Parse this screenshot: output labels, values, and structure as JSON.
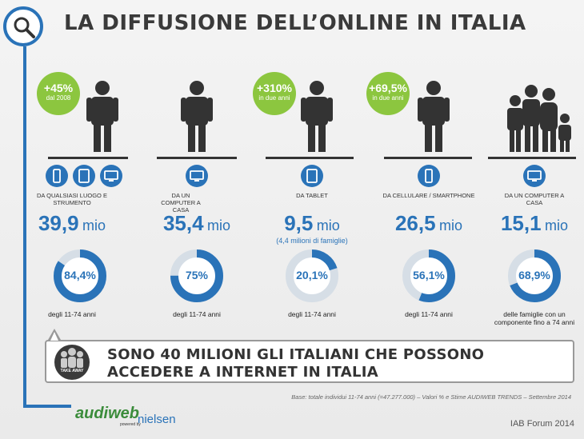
{
  "title": "LA DIFFUSIONE DELL’ONLINE IN ITALIA",
  "columns": [
    {
      "badge_value": "+45%",
      "badge_label": "dal 2008",
      "caption": "DA QUALSIASI LUOGO E STRUMENTO",
      "value": "39,9",
      "unit": "mio",
      "sub": "",
      "pct_label": "84,4%",
      "pct": 84.4,
      "note": "degli 11-74 anni",
      "devices": [
        "smartphone-icon",
        "tablet-icon",
        "monitor-icon"
      ]
    },
    {
      "badge_value": "",
      "badge_label": "",
      "caption": "DA UN COMPUTER A CASA",
      "value": "35,4",
      "unit": "mio",
      "sub": "",
      "pct_label": "75%",
      "pct": 75,
      "note": "degli 11-74 anni",
      "devices": [
        "monitor-icon"
      ]
    },
    {
      "badge_value": "+310%",
      "badge_label": "in due anni",
      "caption": "DA TABLET",
      "value": "9,5",
      "unit": "mio",
      "sub": "(4,4 milioni di famiglie)",
      "pct_label": "20,1%",
      "pct": 20.1,
      "note": "degli 11-74 anni",
      "devices": [
        "tablet-icon"
      ]
    },
    {
      "badge_value": "+69,5%",
      "badge_label": "in due anni",
      "caption": "DA CELLULARE / SMARTPHONE",
      "value": "26,5",
      "unit": "mio",
      "sub": "",
      "pct_label": "56,1%",
      "pct": 56.1,
      "note": "degli 11-74 anni",
      "devices": [
        "smartphone-icon"
      ]
    },
    {
      "badge_value": "",
      "badge_label": "",
      "caption": "DA UN COMPUTER A CASA",
      "value": "15,1",
      "unit": "mio",
      "sub": "",
      "pct_label": "68,9%",
      "pct": 68.9,
      "note": "delle famiglie con un componente fino a 74 anni",
      "devices": [
        "monitor-icon"
      ]
    }
  ],
  "banner": {
    "line1": "SONO 40 MILIONI GLI ITALIANI CHE POSSONO",
    "line2": "ACCEDERE A INTERNET IN ITALIA",
    "icon_label": "TAKE AWAY"
  },
  "source": "Base: totale individui 11-74 anni (=47.277.000) – Valori % e Stime AUDIWEB TRENDS – Settembre 2014",
  "logo": {
    "audiweb": "audiweb",
    "powered": "powered by",
    "nielsen": "nielsen"
  },
  "footer": "IAB Forum 2014",
  "colors": {
    "accent": "#2a73b8",
    "badge": "#8cc63f",
    "text": "#333333",
    "track": "#ffffff"
  }
}
